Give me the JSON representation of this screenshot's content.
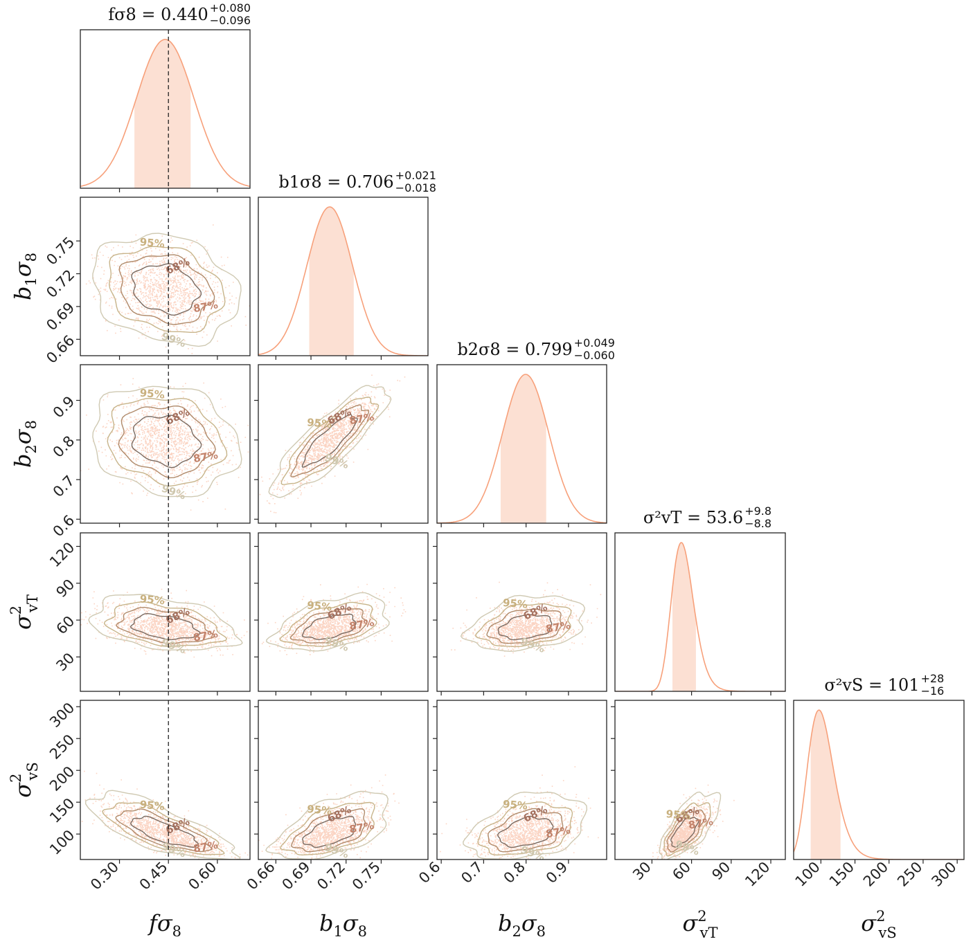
{
  "chart_data": {
    "type": "corner",
    "parameters": [
      {
        "id": "fs8",
        "symbol": "f",
        "sub": "8",
        "label": "fσ8",
        "ticks": [
          0.3,
          0.45,
          0.6
        ],
        "tick_labels": [
          "0.30",
          "0.45",
          "0.60"
        ],
        "range": [
          0.18,
          0.7
        ],
        "title": {
          "lhs": "fσ8 = 0.440",
          "up": "+0.080",
          "lo": "−0.096"
        },
        "median": 0.44,
        "err_up": 0.08,
        "err_lo": 0.096,
        "truth": 0.45
      },
      {
        "id": "b1s8",
        "symbol": "b1",
        "sub": "8",
        "label": "b1σ8",
        "ticks": [
          0.66,
          0.69,
          0.72,
          0.75
        ],
        "tick_labels": [
          "0.66",
          "0.69",
          "0.72",
          "0.75"
        ],
        "range": [
          0.645,
          0.79
        ],
        "title": {
          "lhs": "b1σ8 = 0.706",
          "up": "+0.021",
          "lo": "−0.018"
        },
        "median": 0.706,
        "err_up": 0.021,
        "err_lo": 0.018
      },
      {
        "id": "b2s8",
        "symbol": "b2",
        "sub": "8",
        "label": "b2σ8",
        "ticks": [
          0.6,
          0.7,
          0.8,
          0.9
        ],
        "tick_labels": [
          "0.6",
          "0.7",
          "0.8",
          "0.9"
        ],
        "range": [
          0.59,
          0.99
        ],
        "title": {
          "lhs": "b2σ8 = 0.799",
          "up": "+0.049",
          "lo": "−0.060"
        },
        "median": 0.799,
        "err_up": 0.049,
        "err_lo": 0.06
      },
      {
        "id": "svT",
        "symbol": "σ",
        "sub": "vT",
        "label": "σ²vT",
        "ticks": [
          30,
          60,
          90,
          120
        ],
        "tick_labels": [
          "30",
          "60",
          "90",
          "120"
        ],
        "range": [
          2,
          131
        ],
        "title": {
          "lhs": "σ²vT = 53.6",
          "up": "+9.8",
          "lo": "−8.8"
        },
        "median": 53.6,
        "err_up": 9.8,
        "err_lo": 8.8
      },
      {
        "id": "svS",
        "symbol": "σ",
        "sub": "vS",
        "label": "σ²vS",
        "ticks": [
          100,
          150,
          200,
          250,
          300
        ],
        "tick_labels": [
          "100",
          "150",
          "200",
          "250",
          "300"
        ],
        "range": [
          60,
          310
        ],
        "title": {
          "lhs": "σ²vS = 101",
          "up": "+28",
          "lo": "−16"
        },
        "median": 101,
        "err_up": 28,
        "err_lo": 16
      }
    ],
    "correlations": {
      "1,0": -0.2,
      "2,0": -0.15,
      "2,1": 0.85,
      "3,0": -0.35,
      "3,1": 0.45,
      "3,2": 0.3,
      "4,0": -0.75,
      "4,1": 0.55,
      "4,2": 0.35,
      "4,3": 0.7
    },
    "contour_levels": [
      "68%",
      "87%",
      "95%",
      "99%"
    ],
    "contour_colors": [
      "#7a6a60",
      "#b08a6a",
      "#c7b48a",
      "#cfc9b2"
    ],
    "label_colors": [
      "#a4705e",
      "#c2826a",
      "#c8b07e",
      "#cfc7ae"
    ],
    "point_color": "#f7a07a",
    "kde_color": "#f7a07a",
    "band_color": "#fce0d3",
    "truth_line": {
      "parameter": "fσ8",
      "value": 0.45,
      "style": "dashed"
    }
  }
}
